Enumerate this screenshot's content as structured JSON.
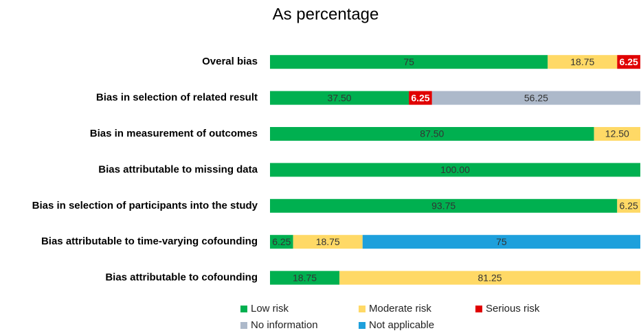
{
  "chart_data": {
    "type": "stacked_barh",
    "title": "As percentage",
    "categories": [
      "Overal bias",
      "Bias in selection of related result",
      "Bias in measurement of outcomes",
      "Bias attributable to missing data",
      "Bias in selection of participants into the study",
      "Bias attributable to time-varying cofounding",
      "Bias attributable to cofounding"
    ],
    "xlim": [
      0,
      100
    ],
    "legend": "bottom",
    "series": [
      {
        "name": "Low risk",
        "color": "#00b050",
        "values": [
          75,
          37.5,
          87.5,
          100,
          93.75,
          6.25,
          18.75
        ],
        "value_labels": [
          "75",
          "37.50",
          "87.50",
          "100.00",
          "93.75",
          "6.25",
          "18.75"
        ]
      },
      {
        "name": "Moderate risk",
        "color": "#ffd966",
        "values": [
          18.75,
          null,
          12.5,
          null,
          6.25,
          18.75,
          81.25
        ],
        "value_labels": [
          "18.75",
          null,
          "12.50",
          null,
          "6.25",
          "18.75",
          "81.25"
        ]
      },
      {
        "name": "Serious risk",
        "color": "#e00000",
        "values": [
          6.25,
          6.25,
          null,
          null,
          null,
          null,
          null
        ],
        "value_labels": [
          "6.25",
          "6.25",
          null,
          null,
          null,
          null,
          null
        ]
      },
      {
        "name": "No information",
        "color": "#adb9ca",
        "values": [
          null,
          56.25,
          null,
          null,
          null,
          null,
          null
        ],
        "value_labels": [
          null,
          "56.25",
          null,
          null,
          null,
          null,
          null
        ]
      },
      {
        "name": "Not applicable",
        "color": "#1ea0dc",
        "values": [
          null,
          null,
          null,
          null,
          null,
          75,
          null
        ],
        "value_labels": [
          null,
          null,
          null,
          null,
          null,
          "75",
          null
        ]
      }
    ]
  }
}
